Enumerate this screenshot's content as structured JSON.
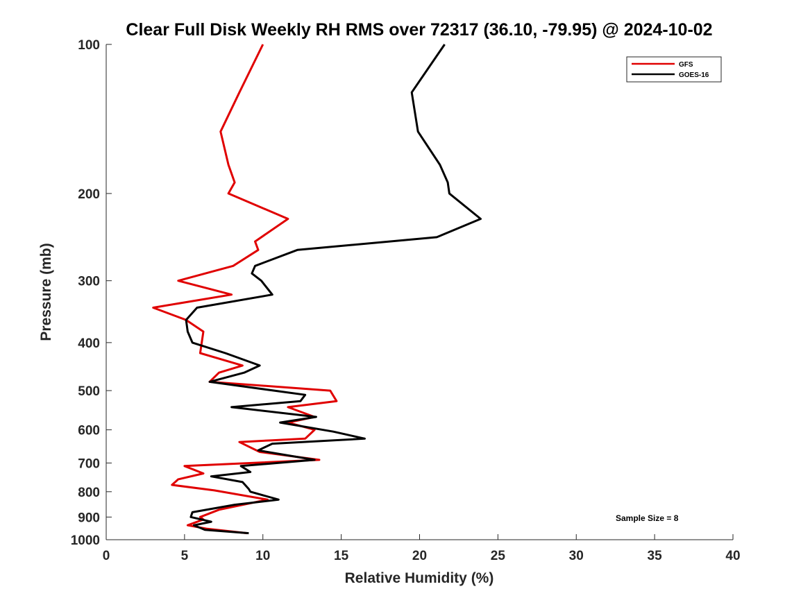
{
  "chart_data": {
    "type": "line",
    "title": "Clear Full Disk Weekly RH RMS over 72317 (36.10, -79.95) @ 2024-10-02",
    "xlabel": "Relative Humidity (%)",
    "ylabel": "Pressure (mb)",
    "xlim": [
      0,
      40
    ],
    "ylim": [
      1000,
      100
    ],
    "yscale": "log",
    "grid": false,
    "legend_position": "top-right",
    "x_ticks": [
      0,
      5,
      10,
      15,
      20,
      25,
      30,
      35,
      40
    ],
    "y_ticks": [
      100,
      200,
      300,
      400,
      500,
      600,
      700,
      800,
      900,
      1000
    ],
    "annotation": "Sample Size = 8",
    "series": [
      {
        "name": "GFS",
        "color": "#e00000",
        "points": [
          [
            10.0,
            100
          ],
          [
            8.5,
            125
          ],
          [
            7.3,
            150
          ],
          [
            7.8,
            175
          ],
          [
            8.2,
            190
          ],
          [
            7.8,
            200
          ],
          [
            11.6,
            225
          ],
          [
            9.5,
            250
          ],
          [
            9.7,
            260
          ],
          [
            8.1,
            280
          ],
          [
            4.6,
            300
          ],
          [
            8.0,
            320
          ],
          [
            3.0,
            340
          ],
          [
            5.1,
            360
          ],
          [
            6.2,
            380
          ],
          [
            6.0,
            420
          ],
          [
            8.7,
            445
          ],
          [
            7.2,
            460
          ],
          [
            6.6,
            480
          ],
          [
            14.3,
            500
          ],
          [
            14.7,
            525
          ],
          [
            11.6,
            540
          ],
          [
            13.3,
            565
          ],
          [
            11.6,
            580
          ],
          [
            13.3,
            600
          ],
          [
            12.7,
            625
          ],
          [
            10.6,
            630
          ],
          [
            8.5,
            635
          ],
          [
            9.8,
            665
          ],
          [
            13.6,
            690
          ],
          [
            5.0,
            710
          ],
          [
            6.2,
            735
          ],
          [
            4.6,
            755
          ],
          [
            4.2,
            775
          ],
          [
            6.9,
            795
          ],
          [
            10.3,
            830
          ],
          [
            7.2,
            870
          ],
          [
            6.0,
            900
          ],
          [
            6.2,
            910
          ],
          [
            5.2,
            935
          ],
          [
            6.4,
            950
          ],
          [
            9.0,
            970
          ]
        ]
      },
      {
        "name": "GOES-16",
        "color": "#000000",
        "points": [
          [
            21.6,
            100
          ],
          [
            19.5,
            125
          ],
          [
            19.9,
            150
          ],
          [
            21.3,
            175
          ],
          [
            21.8,
            190
          ],
          [
            21.9,
            200
          ],
          [
            23.9,
            225
          ],
          [
            21.1,
            245
          ],
          [
            12.2,
            260
          ],
          [
            9.5,
            280
          ],
          [
            9.3,
            290
          ],
          [
            9.9,
            300
          ],
          [
            10.6,
            320
          ],
          [
            5.8,
            340
          ],
          [
            5.1,
            360
          ],
          [
            5.2,
            380
          ],
          [
            5.5,
            400
          ],
          [
            7.6,
            420
          ],
          [
            9.8,
            445
          ],
          [
            8.8,
            460
          ],
          [
            6.6,
            480
          ],
          [
            12.7,
            510
          ],
          [
            12.4,
            525
          ],
          [
            8.0,
            540
          ],
          [
            13.4,
            565
          ],
          [
            11.1,
            580
          ],
          [
            14.5,
            605
          ],
          [
            16.5,
            625
          ],
          [
            10.6,
            640
          ],
          [
            9.7,
            660
          ],
          [
            13.3,
            690
          ],
          [
            8.6,
            710
          ],
          [
            9.2,
            730
          ],
          [
            6.7,
            745
          ],
          [
            8.7,
            765
          ],
          [
            9.1,
            790
          ],
          [
            9.2,
            800
          ],
          [
            11.0,
            830
          ],
          [
            8.2,
            850
          ],
          [
            5.5,
            880
          ],
          [
            5.4,
            900
          ],
          [
            6.7,
            920
          ],
          [
            5.6,
            935
          ],
          [
            6.3,
            955
          ],
          [
            9.1,
            970
          ]
        ]
      }
    ]
  }
}
